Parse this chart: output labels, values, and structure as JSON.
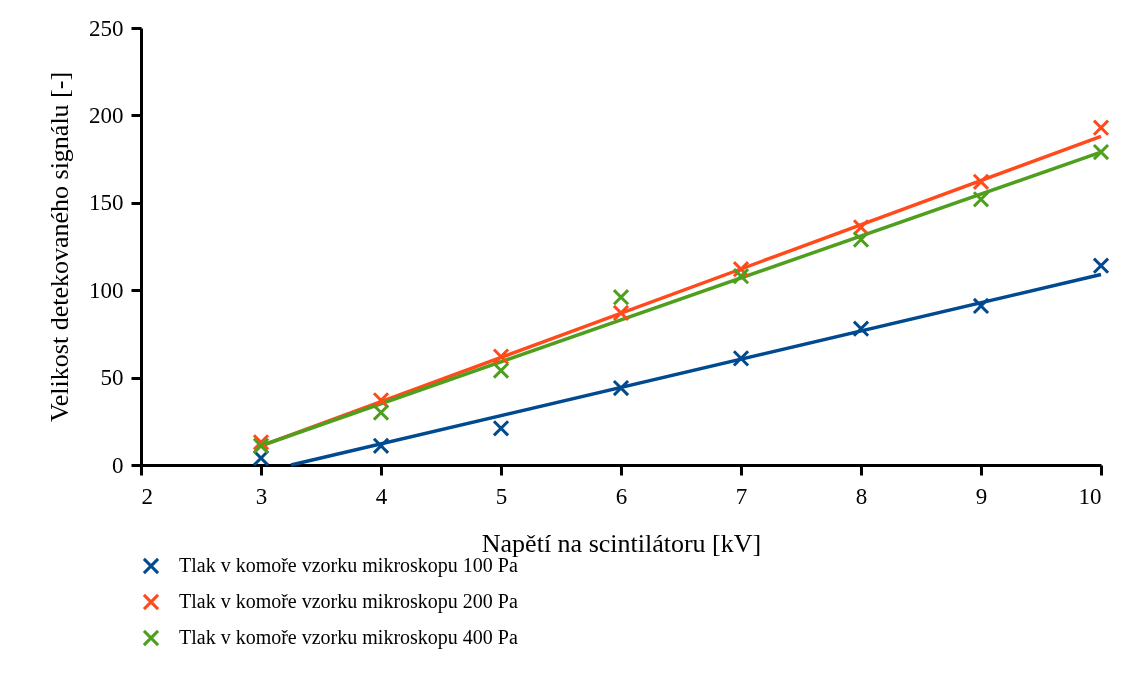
{
  "chart_data": {
    "type": "scatter",
    "xlabel": "Napětí na scintilátoru [kV]",
    "ylabel": "Velikost detekovaného signálu [-]",
    "xlim": [
      2,
      10
    ],
    "xticks": [
      2,
      3,
      4,
      5,
      6,
      7,
      8,
      9,
      10
    ],
    "ylim": [
      0,
      250
    ],
    "yticks": [
      0,
      50,
      100,
      150,
      200,
      250
    ],
    "grid": false,
    "legend": "bottom",
    "series": [
      {
        "type": "line",
        "marker": "none",
        "color": "#004a8f",
        "x": [
          3.25,
          10
        ],
        "values": [
          0,
          109
        ]
      },
      {
        "type": "line",
        "marker": "none",
        "color": "#ff4b1c",
        "x": [
          3,
          10
        ],
        "values": [
          11,
          188
        ]
      },
      {
        "type": "line",
        "marker": "none",
        "color": "#4f9f1e",
        "x": [
          3,
          10
        ],
        "values": [
          11,
          179
        ]
      },
      {
        "marker": "cross",
        "name": "Tlak v komoře vzorku mikroskopu 100 Pa",
        "color": "#004a8f",
        "x": [
          3,
          4,
          5,
          6,
          7,
          8,
          9,
          10
        ],
        "values": [
          4,
          11,
          21,
          44,
          61,
          78,
          91,
          114
        ]
      },
      {
        "marker": "cross",
        "name": "Tlak v komoře vzorku mikroskopu 200 Pa",
        "color": "#ff4b1c",
        "x": [
          3,
          4,
          5,
          6,
          7,
          8,
          9,
          10
        ],
        "values": [
          13,
          37,
          62,
          87,
          112,
          136,
          162,
          193
        ]
      },
      {
        "marker": "cross",
        "name": "Tlak v komoře vzorku mikroskopu 400 Pa",
        "color": "#4f9f1e",
        "x": [
          3,
          4,
          5,
          6,
          7,
          8,
          9,
          10
        ],
        "values": [
          11,
          30,
          54,
          96,
          108,
          129,
          152,
          179
        ]
      }
    ]
  }
}
